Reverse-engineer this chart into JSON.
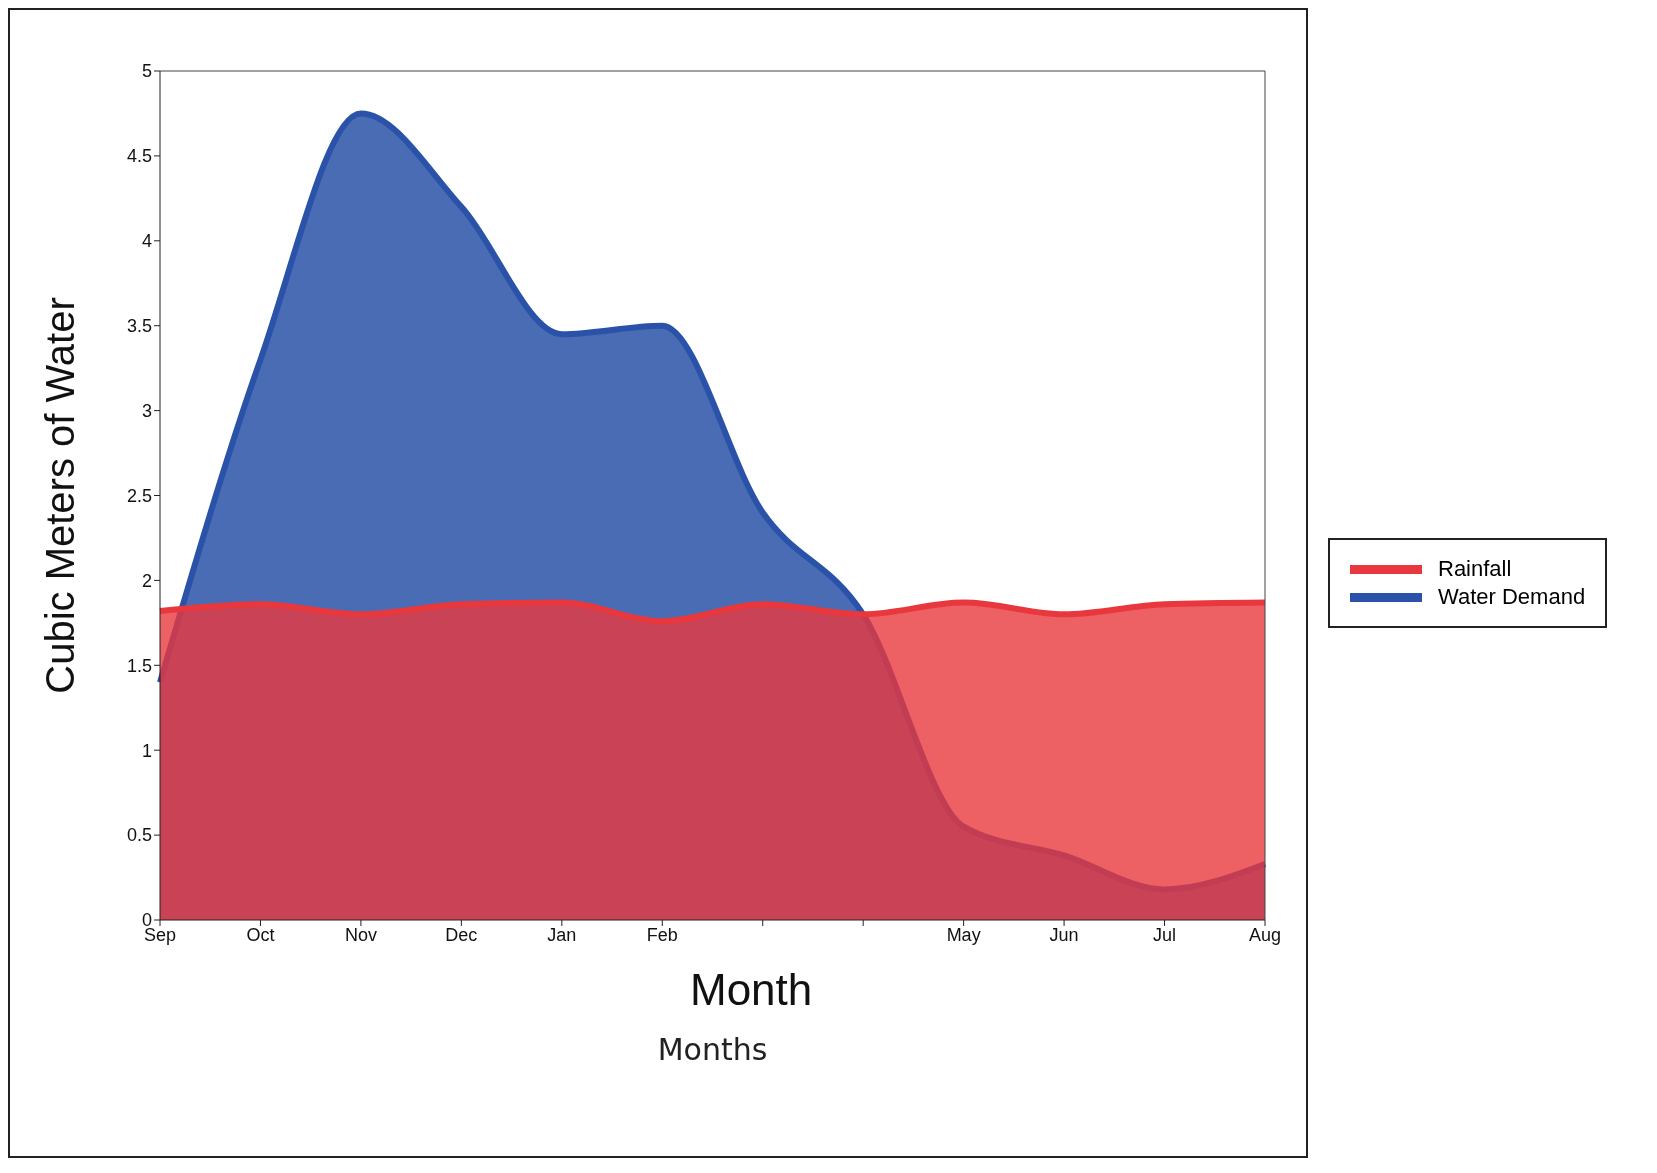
{
  "chart_data": {
    "type": "area",
    "ylabel": "Cubic Meters of Water",
    "xlabel": "Months",
    "annotations": [
      "Month"
    ],
    "categories": [
      "Sep",
      "Oct",
      "Nov",
      "Dec",
      "Jan",
      "Feb",
      null,
      null,
      "May",
      "Jun",
      "Jul",
      "Aug"
    ],
    "series": [
      {
        "name": "Water Demand",
        "color": "#2a52a8",
        "values": [
          1.4,
          3.3,
          4.75,
          4.2,
          3.45,
          3.5,
          2.4,
          1.8,
          0.55,
          0.38,
          0.18,
          0.33
        ]
      },
      {
        "name": "Rainfall",
        "color": "#e8383d",
        "values": [
          1.82,
          1.86,
          1.8,
          1.86,
          1.87,
          1.76,
          1.86,
          1.8,
          1.87,
          1.8,
          1.86,
          1.87
        ]
      }
    ],
    "ylim": [
      0,
      5
    ],
    "yticks": [
      0,
      0.5,
      1,
      1.5,
      2,
      2.5,
      3,
      3.5,
      4,
      4.5,
      5
    ],
    "grid": false,
    "legend": "right",
    "line_style": "solid",
    "marker": "none"
  }
}
